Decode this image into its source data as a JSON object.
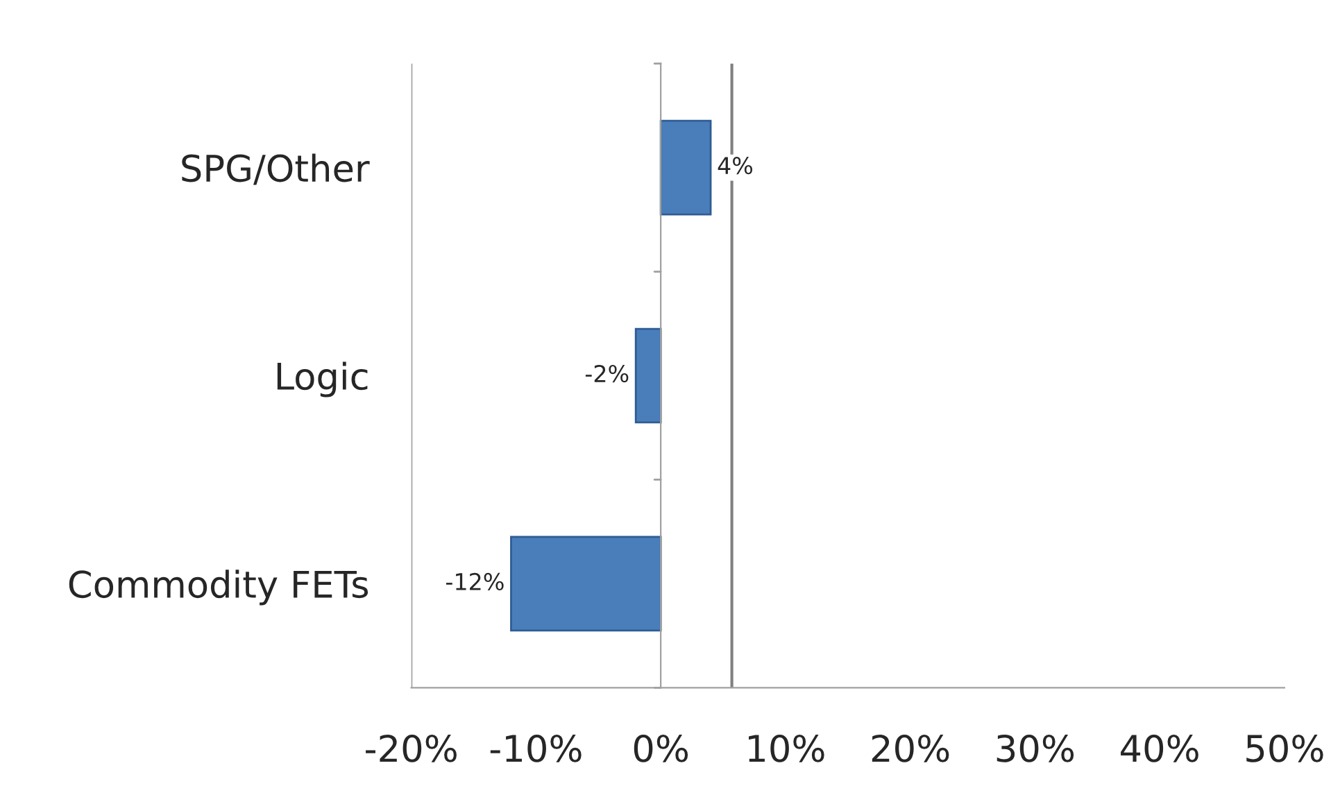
{
  "chart_data": {
    "type": "bar",
    "orientation": "horizontal",
    "categories": [
      "SPG/Other",
      "Logic",
      "Commodity FETs"
    ],
    "values": [
      4,
      -2,
      -12
    ],
    "value_labels": [
      "4%",
      "-2%",
      "-12%"
    ],
    "color": "#4a7ebb",
    "xlim": [
      -20,
      50
    ],
    "xticks": [
      {
        "value": -20,
        "label": "-20%"
      },
      {
        "value": -10,
        "label": "-10%"
      },
      {
        "value": 0,
        "label": "0%"
      },
      {
        "value": 10,
        "label": "10%"
      },
      {
        "value": 20,
        "label": "20%"
      },
      {
        "value": 30,
        "label": "30%"
      },
      {
        "value": 40,
        "label": "40%"
      },
      {
        "value": 50,
        "label": "50%"
      }
    ],
    "ref_lines": [
      {
        "axis": "x",
        "value": 5.7,
        "color": "#808080"
      }
    ],
    "legend": false
  }
}
